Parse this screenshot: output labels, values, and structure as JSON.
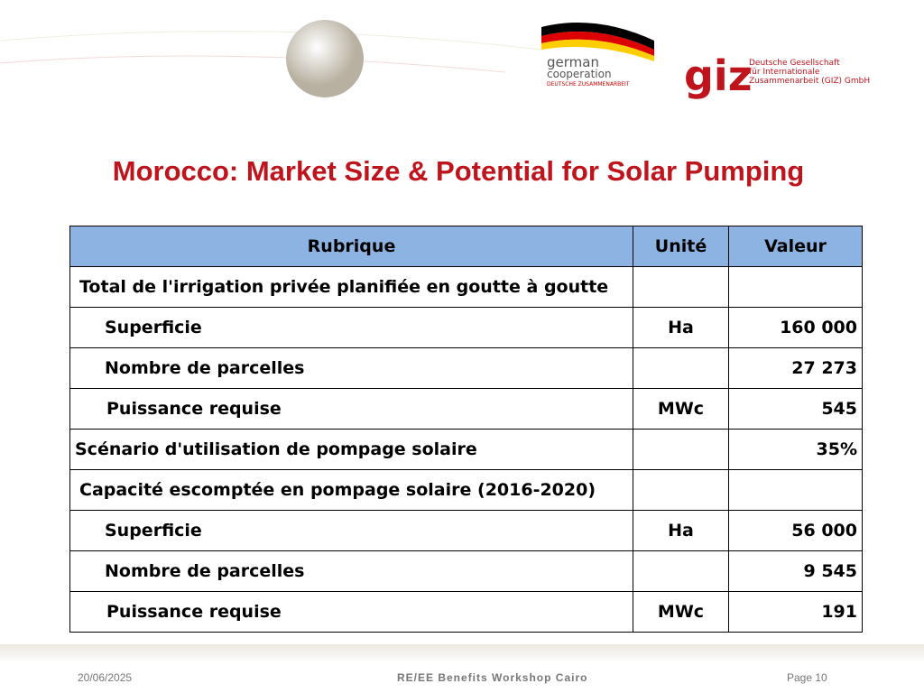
{
  "header": {
    "german_logo": {
      "line1": "german",
      "line2": "cooperation",
      "line3": "DEUTSCHE ZUSAMMENARBEIT"
    },
    "giz_logo": {
      "mark": "giz",
      "line1": "Deutsche Gesellschaft",
      "line2": "für Internationale",
      "line3": "Zusammenarbeit (GIZ) GmbH"
    }
  },
  "title": "Morocco: Market Size & Potential for Solar Pumping",
  "table": {
    "columns": [
      "Rubrique",
      "Unité",
      "Valeur"
    ],
    "rows": [
      {
        "label": "Total de l'irrigation privée planifiée  en goutte à goutte"
      },
      {
        "label": "Superficie",
        "unit": "Ha",
        "value": "160 000"
      },
      {
        "label": "Nombre de parcelles",
        "value": "27 273"
      },
      {
        "label": "Puissance requise",
        "unit": "MWc",
        "value": "545"
      },
      {
        "label": "Scénario d'utilisation de pompage solaire",
        "value": "35%"
      },
      {
        "label": "Capacité escomptée en pompage solaire (2016-2020)"
      },
      {
        "label": "Superficie",
        "unit": "Ha",
        "value": "56 000"
      },
      {
        "label": "Nombre de parcelles",
        "value": "9 545"
      },
      {
        "label": "Puissance requise",
        "unit": "MWc",
        "value": "191"
      }
    ]
  },
  "footer": {
    "date": "20/06/2025",
    "event": "RE/EE Benefits Workshop Cairo",
    "page": "Page 10"
  }
}
